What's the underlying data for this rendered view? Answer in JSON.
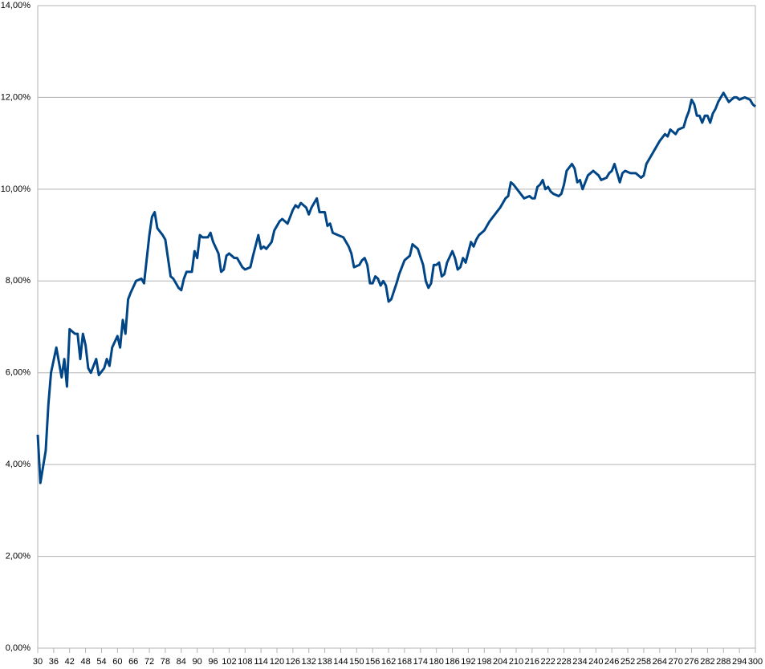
{
  "chart_data": {
    "type": "line",
    "x": [
      30,
      31,
      33,
      34,
      35,
      37,
      39,
      40,
      41,
      42,
      44,
      45,
      46,
      47,
      48,
      49,
      50,
      52,
      53,
      55,
      56,
      57,
      58,
      60,
      61,
      62,
      63,
      64,
      65,
      67,
      69,
      70,
      72,
      73,
      74,
      75,
      77,
      78,
      80,
      81,
      83,
      84,
      85,
      86,
      88,
      89,
      90,
      91,
      92,
      94,
      95,
      96,
      98,
      99,
      100,
      101,
      102,
      104,
      105,
      107,
      108,
      110,
      111,
      113,
      114,
      115,
      116,
      118,
      119,
      121,
      122,
      124,
      126,
      127,
      128,
      129,
      131,
      132,
      133,
      135,
      136,
      138,
      139,
      140,
      141,
      143,
      145,
      146,
      147,
      148,
      149,
      151,
      152,
      153,
      154,
      155,
      156,
      157,
      158,
      159,
      160,
      161,
      162,
      163,
      165,
      166,
      168,
      170,
      171,
      172,
      173,
      175,
      176,
      177,
      178,
      179,
      180,
      181,
      182,
      183,
      184,
      186,
      187,
      188,
      189,
      190,
      191,
      193,
      194,
      195,
      196,
      198,
      200,
      202,
      204,
      206,
      207,
      208,
      209,
      211,
      213,
      215,
      216,
      217,
      218,
      219,
      220,
      221,
      222,
      223,
      224,
      226,
      227,
      228,
      229,
      231,
      232,
      233,
      234,
      235,
      236,
      237,
      239,
      241,
      242,
      244,
      245,
      246,
      247,
      248,
      249,
      250,
      251,
      253,
      255,
      257,
      258,
      259,
      261,
      263,
      264,
      266,
      267,
      268,
      269,
      270,
      271,
      273,
      274,
      275,
      276,
      277,
      278,
      279,
      280,
      281,
      282,
      283,
      284,
      285,
      286,
      287,
      288,
      289,
      290,
      291,
      292,
      293,
      294,
      296,
      298,
      299,
      300
    ],
    "series": [
      {
        "color": "#004586",
        "values": [
          4.65,
          3.6,
          4.3,
          5.3,
          6.0,
          6.55,
          5.9,
          6.3,
          5.7,
          6.95,
          6.85,
          6.85,
          6.3,
          6.85,
          6.6,
          6.1,
          6.0,
          6.3,
          5.95,
          6.1,
          6.3,
          6.15,
          6.55,
          6.8,
          6.55,
          7.15,
          6.85,
          7.6,
          7.75,
          8.0,
          8.05,
          7.95,
          9.0,
          9.4,
          9.5,
          9.15,
          9.0,
          8.9,
          8.1,
          8.05,
          7.85,
          7.8,
          8.05,
          8.2,
          8.2,
          8.65,
          8.5,
          9.0,
          8.95,
          8.95,
          9.05,
          8.85,
          8.6,
          8.2,
          8.25,
          8.55,
          8.6,
          8.5,
          8.5,
          8.3,
          8.25,
          8.3,
          8.55,
          9.0,
          8.7,
          8.75,
          8.7,
          8.85,
          9.1,
          9.3,
          9.35,
          9.25,
          9.55,
          9.65,
          9.6,
          9.7,
          9.6,
          9.45,
          9.6,
          9.8,
          9.5,
          9.5,
          9.2,
          9.25,
          9.05,
          9.0,
          8.95,
          8.85,
          8.75,
          8.6,
          8.3,
          8.35,
          8.45,
          8.5,
          8.35,
          7.95,
          7.95,
          8.1,
          8.05,
          7.9,
          8.0,
          7.9,
          7.55,
          7.6,
          7.95,
          8.15,
          8.45,
          8.55,
          8.8,
          8.75,
          8.7,
          8.35,
          8.0,
          7.85,
          7.95,
          8.35,
          8.35,
          8.4,
          8.1,
          8.15,
          8.4,
          8.65,
          8.5,
          8.25,
          8.3,
          8.5,
          8.4,
          8.85,
          8.75,
          8.9,
          9.0,
          9.1,
          9.3,
          9.45,
          9.6,
          9.8,
          9.85,
          10.15,
          10.1,
          9.95,
          9.8,
          9.85,
          9.8,
          9.8,
          10.05,
          10.1,
          10.2,
          10.0,
          10.05,
          9.95,
          9.9,
          9.85,
          9.9,
          10.1,
          10.4,
          10.55,
          10.45,
          10.15,
          10.2,
          10.0,
          10.15,
          10.3,
          10.4,
          10.3,
          10.2,
          10.25,
          10.35,
          10.4,
          10.55,
          10.35,
          10.15,
          10.35,
          10.4,
          10.35,
          10.35,
          10.25,
          10.3,
          10.55,
          10.75,
          10.95,
          11.05,
          11.2,
          11.15,
          11.3,
          11.25,
          11.2,
          11.3,
          11.35,
          11.55,
          11.7,
          11.95,
          11.85,
          11.6,
          11.6,
          11.45,
          11.6,
          11.6,
          11.45,
          11.65,
          11.75,
          11.9,
          12.0,
          12.1,
          12.0,
          11.9,
          11.95,
          12.0,
          12.0,
          11.95,
          12.0,
          11.95,
          11.85,
          11.8
        ]
      }
    ],
    "xlim": [
      30,
      300
    ],
    "xticks": [
      30,
      36,
      42,
      48,
      54,
      60,
      66,
      72,
      78,
      84,
      90,
      96,
      102,
      108,
      114,
      120,
      126,
      132,
      138,
      144,
      150,
      156,
      162,
      168,
      174,
      180,
      186,
      192,
      198,
      204,
      210,
      216,
      222,
      228,
      234,
      240,
      246,
      252,
      258,
      264,
      270,
      276,
      282,
      288,
      294,
      300
    ],
    "ylim": [
      0,
      14
    ],
    "yticks": [
      {
        "value": 0,
        "label": "0,00%"
      },
      {
        "value": 2,
        "label": "2,00%"
      },
      {
        "value": 4,
        "label": "4,00%"
      },
      {
        "value": 6,
        "label": "6,00%"
      },
      {
        "value": 8,
        "label": "8,00%"
      },
      {
        "value": 10,
        "label": "10,00%"
      },
      {
        "value": 12,
        "label": "12,00%"
      },
      {
        "value": 14,
        "label": "14,00%"
      }
    ],
    "grid": true
  }
}
